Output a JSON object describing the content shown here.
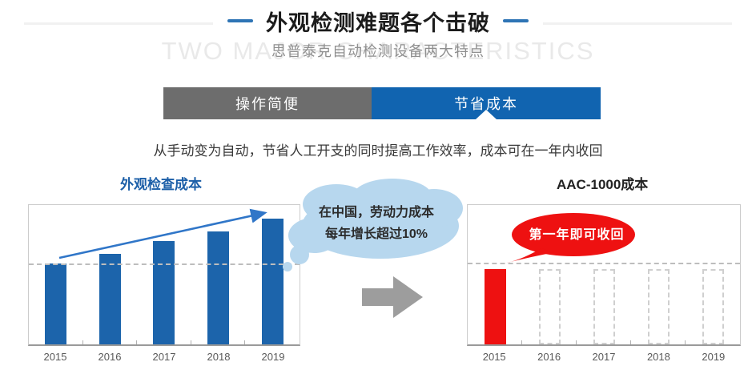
{
  "header": {
    "title": "外观检测难题各个击破",
    "subtitle": "思普泰克自动检测设备两大特点",
    "watermark": "TWO MAJOR CHARACTERISTICS"
  },
  "tabs": [
    {
      "label": "操作简便",
      "active": false
    },
    {
      "label": "节省成本",
      "active": true
    }
  ],
  "description": "从手动变为自动，节省人工开支的同时提高工作效率，成本可在一年内收回",
  "cloud_bubble": {
    "line1": "在中国，劳动力成本",
    "line2": "每年增长超过10%"
  },
  "red_bubble": {
    "text": "第一年即可收回"
  },
  "colors": {
    "accent_blue": "#1164b0",
    "bar_blue": "#1c64ab",
    "trend_arrow_blue": "#3076c8",
    "tab_gray": "#6d6d6d",
    "red": "#ee1111",
    "cloud_blue": "#b7d7ee",
    "watermark_gray": "#e9e9e9",
    "mid_arrow_gray": "#9d9d9d"
  },
  "chart_data": [
    {
      "type": "bar",
      "title": "外观检查成本",
      "categories": [
        "2015",
        "2016",
        "2017",
        "2018",
        "2019"
      ],
      "values": [
        58,
        65,
        74,
        81,
        90
      ],
      "value_units": "relative bar height % (no y-axis scale shown)",
      "bar_color": "#1c64ab",
      "bar_styles": [
        "solid",
        "solid",
        "solid",
        "solid",
        "solid"
      ],
      "xlabel": "",
      "ylabel": "",
      "grid": "single dashed reference line at first-bar top",
      "annotations": [
        "rising blue trend arrow across bar tops"
      ]
    },
    {
      "type": "bar",
      "title": "AAC-1000成本",
      "categories": [
        "2015",
        "2016",
        "2017",
        "2018",
        "2019"
      ],
      "values": [
        54,
        54,
        54,
        54,
        54
      ],
      "value_units": "relative bar height % (no y-axis scale shown); 2016-2019 are empty dashed placeholders",
      "bar_color": "#ee1111",
      "bar_styles": [
        "solid",
        "dashed-placeholder",
        "dashed-placeholder",
        "dashed-placeholder",
        "dashed-placeholder"
      ],
      "xlabel": "",
      "ylabel": "",
      "grid": "single dashed reference line at bar top",
      "annotations": [
        "red callout: 第一年即可收回"
      ]
    }
  ]
}
